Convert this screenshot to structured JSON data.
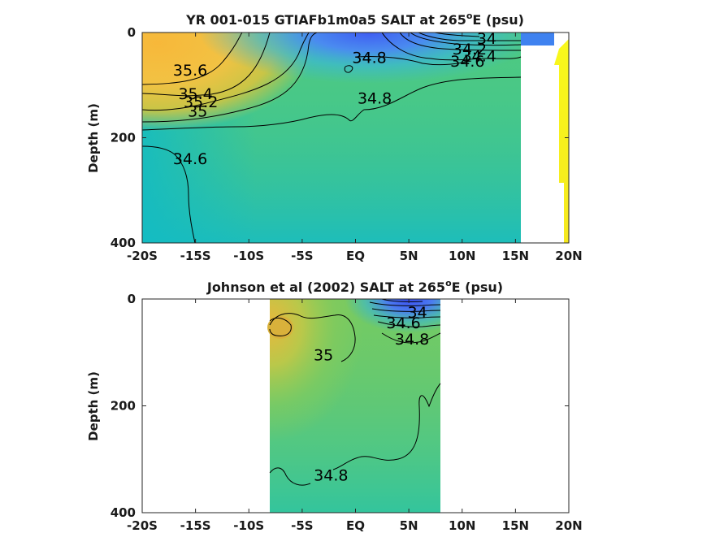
{
  "chart_data": [
    {
      "type": "heatmap",
      "title": "YR 001-015 GTIAFb1m0a5 SALT at 265",
      "title_sup": "o",
      "title_suffix": "E (psu)",
      "ylabel": "Depth (m)",
      "xlabel": "",
      "x_ticks": [
        "-20S",
        "-15S",
        "-10S",
        "-5S",
        "EQ",
        "5N",
        "10N",
        "15N",
        "20N"
      ],
      "x_range": [
        -20,
        20
      ],
      "y_ticks": [
        "0",
        "200",
        "400"
      ],
      "y_range": [
        0,
        400
      ],
      "y_reversed": true,
      "contour_labels": [
        {
          "text": "35.6",
          "lat": -15.5,
          "depth": 82
        },
        {
          "text": "35.4",
          "lat": -15.0,
          "depth": 127
        },
        {
          "text": "35.2",
          "lat": -14.5,
          "depth": 142
        },
        {
          "text": "35",
          "lat": -14.8,
          "depth": 160
        },
        {
          "text": "34.6",
          "lat": -15.5,
          "depth": 250
        },
        {
          "text": "34.8",
          "lat": 1.3,
          "depth": 58
        },
        {
          "text": "34.8",
          "lat": 1.8,
          "depth": 135
        },
        {
          "text": "34",
          "lat": 12.3,
          "depth": 22
        },
        {
          "text": "34.2",
          "lat": 10.7,
          "depth": 42
        },
        {
          "text": "34.4",
          "lat": 11.6,
          "depth": 55
        },
        {
          "text": "34.6",
          "lat": 10.5,
          "depth": 65
        }
      ]
    },
    {
      "type": "heatmap",
      "title": "Johnson et al (2002) SALT at 265",
      "title_sup": "o",
      "title_suffix": "E (psu)",
      "ylabel": "Depth (m)",
      "xlabel": "",
      "x_ticks": [
        "-20S",
        "-15S",
        "-10S",
        "-5S",
        "EQ",
        "5N",
        "10N",
        "15N",
        "20N"
      ],
      "x_range": [
        -20,
        20
      ],
      "y_ticks": [
        "0",
        "200",
        "400"
      ],
      "y_range": [
        0,
        400
      ],
      "y_reversed": true,
      "data_lat_range": [
        -8,
        8
      ],
      "contour_labels": [
        {
          "text": "35",
          "lat": -3.0,
          "depth": 115
        },
        {
          "text": "34",
          "lat": 5.8,
          "depth": 35
        },
        {
          "text": "34.6",
          "lat": 4.5,
          "depth": 55
        },
        {
          "text": "34.8",
          "lat": 5.3,
          "depth": 85
        },
        {
          "text": "34.8",
          "lat": -2.3,
          "depth": 340
        }
      ]
    }
  ]
}
